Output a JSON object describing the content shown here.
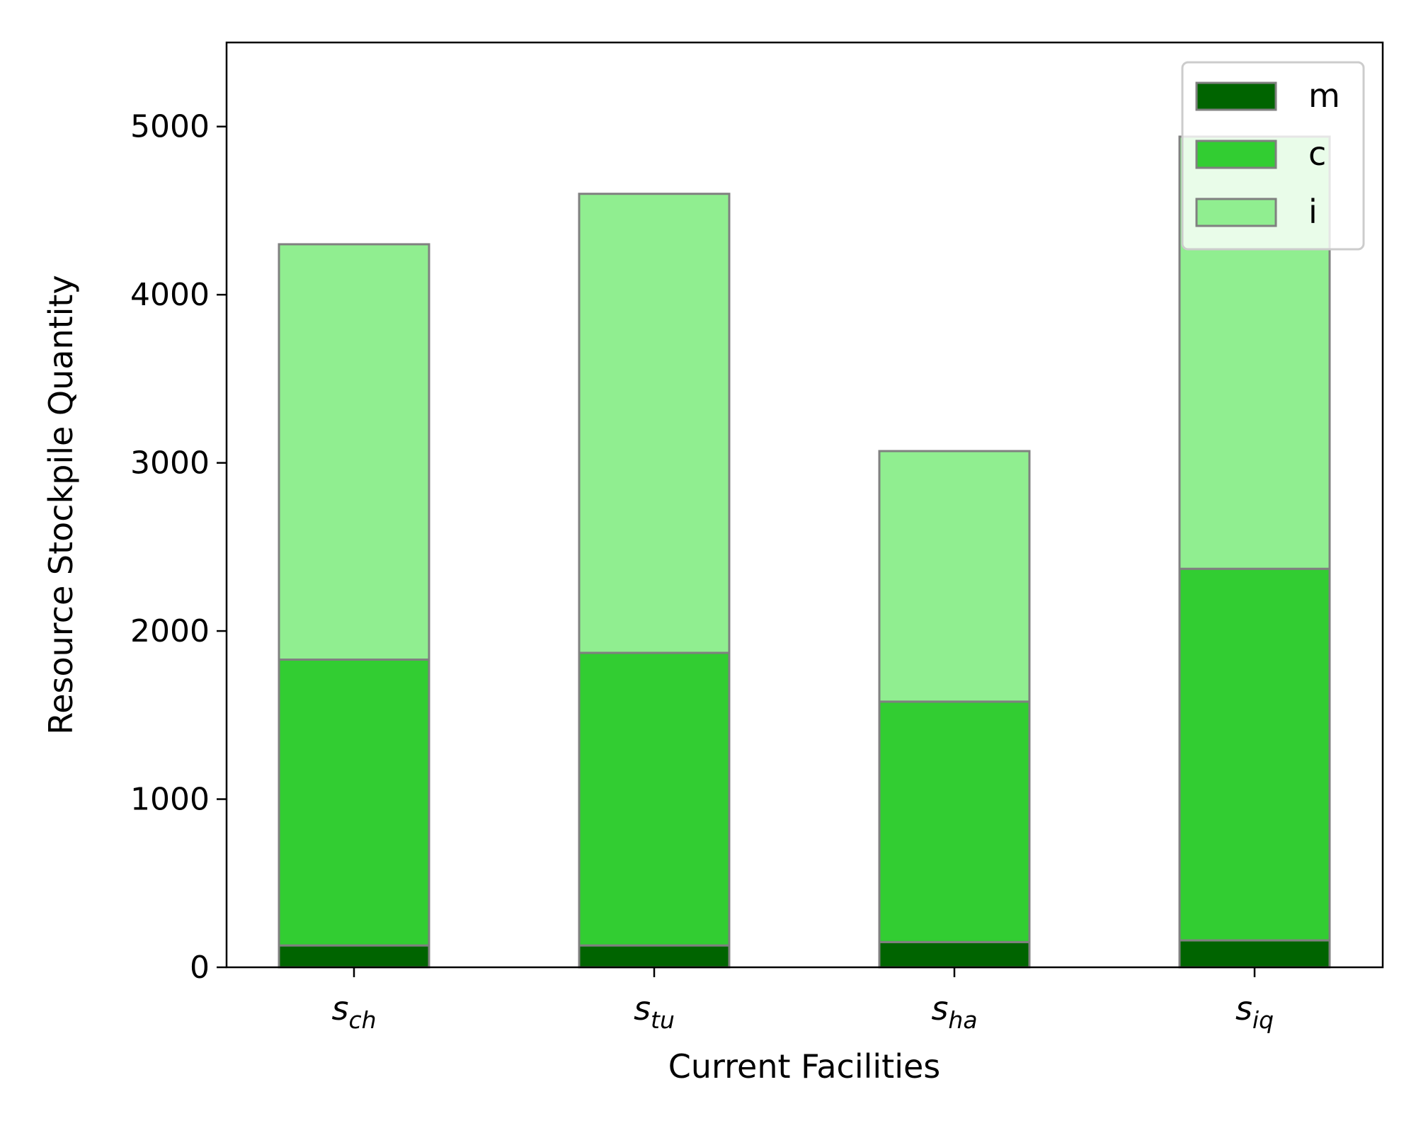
{
  "chart_data": {
    "type": "bar",
    "stacked": true,
    "xlabel": "Current Facilities",
    "ylabel": "Resource Stockpile Quantity",
    "ylim": [
      0,
      5500
    ],
    "yticks": [
      0,
      1000,
      2000,
      3000,
      4000,
      5000
    ],
    "grid": false,
    "legend_position": "top-right",
    "categories": [
      {
        "base": "s",
        "sub": "ch"
      },
      {
        "base": "s",
        "sub": "tu"
      },
      {
        "base": "s",
        "sub": "ha"
      },
      {
        "base": "s",
        "sub": "iq"
      }
    ],
    "series": [
      {
        "name": "m",
        "color": "#006400",
        "values": [
          130,
          130,
          150,
          160
        ]
      },
      {
        "name": "c",
        "color": "#32cd32",
        "values": [
          1700,
          1740,
          1430,
          2210
        ]
      },
      {
        "name": "i",
        "color": "#90ee90",
        "values": [
          2470,
          2730,
          1490,
          2570
        ]
      }
    ],
    "edge_color": "#808080"
  }
}
